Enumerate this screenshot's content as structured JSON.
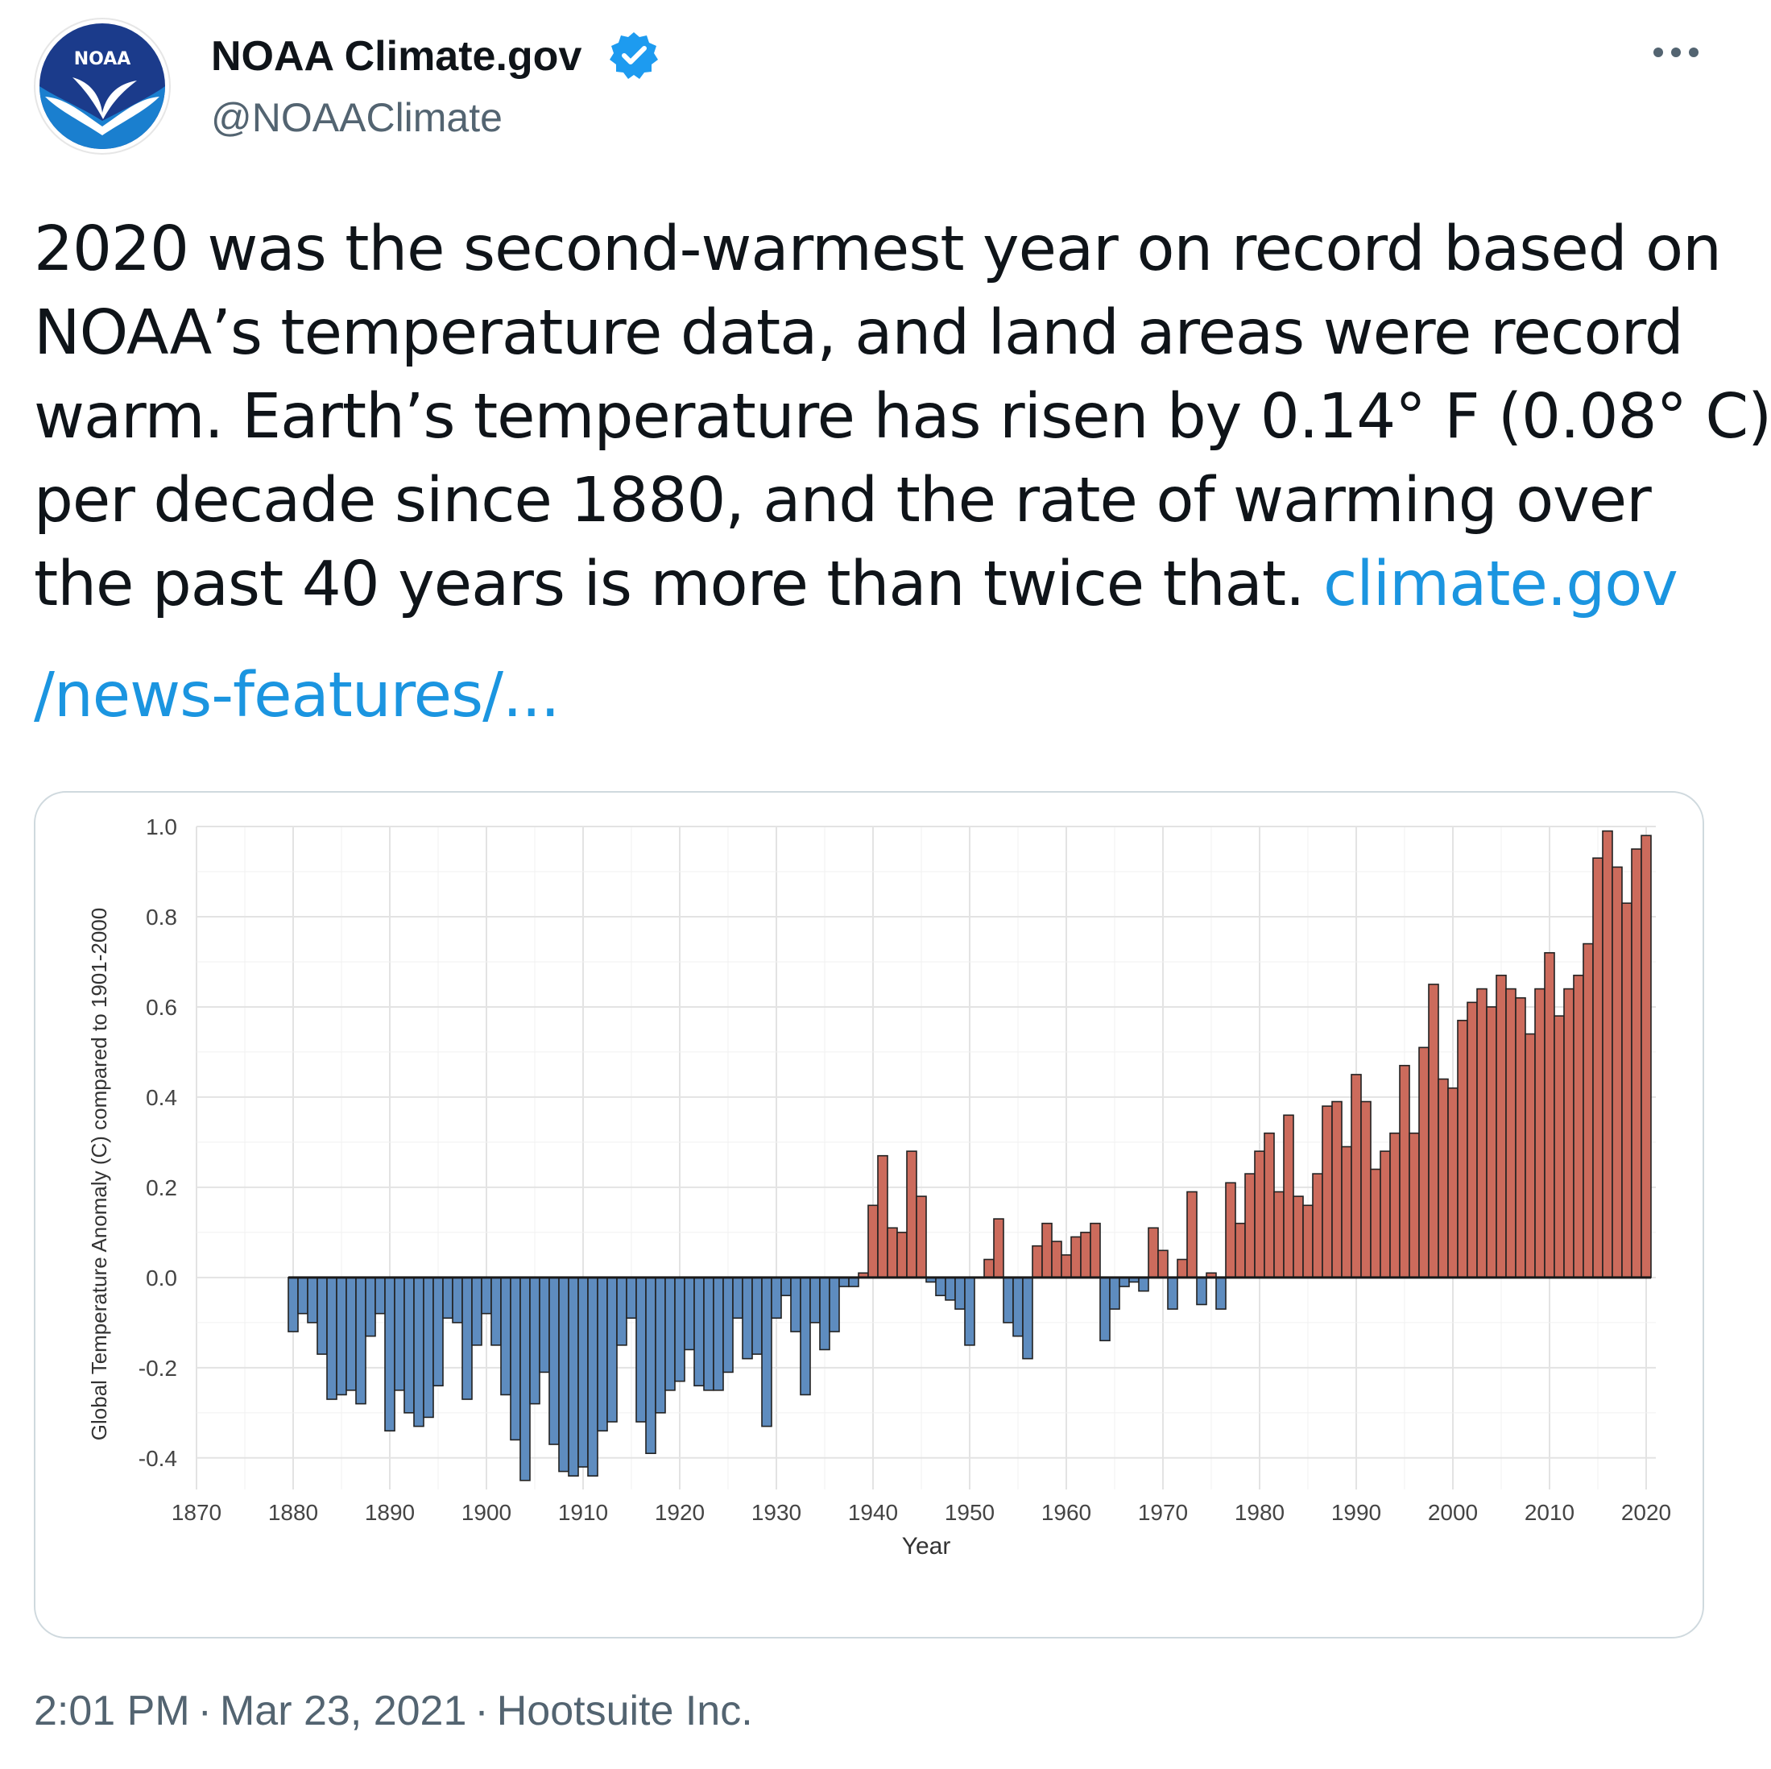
{
  "colors": {
    "positive_bar": "#cc6b5c",
    "negative_bar": "#5e8cbf",
    "link": "#1b95e0",
    "verified": "#1d9bf0",
    "noaa_navy": "#1b3b8b",
    "noaa_blue": "#1a7fcf"
  },
  "author": {
    "avatar_icon": "noaa-logo-icon",
    "avatar_text": "NOAA",
    "display_name": "NOAA Climate.gov",
    "handle": "@NOAAClimate",
    "verified_icon": "verified-badge-icon",
    "more_icon": "more-options-icon"
  },
  "tweet": {
    "lines": [
      "2020 was the second-warmest year on record based on",
      "NOAA’s temperature data, and land areas were record",
      "warm. Earth’s temperature has risen by 0.14° F (0.08° C)",
      "per decade since 1880, and the rate of warming over",
      "the past 40 years is more than twice that. "
    ],
    "link_part1": "climate.gov",
    "link_part2": "/news-features/..."
  },
  "chart_data": {
    "type": "bar",
    "xlabel": "Year",
    "ylabel": "Global Temperature Anomaly (C) compared to 1901-2000",
    "xlim": [
      1870,
      2021
    ],
    "ylim": [
      -0.47,
      1.0
    ],
    "grid": true,
    "xticks": [
      1870,
      1880,
      1890,
      1900,
      1910,
      1920,
      1930,
      1940,
      1950,
      1960,
      1970,
      1980,
      1990,
      2000,
      2010,
      2020
    ],
    "yticks": [
      "1.0",
      "0.8",
      "0.6",
      "0.4",
      "0.2",
      "0.0",
      "-0.2",
      "-0.4"
    ],
    "start_year": 1880,
    "values": [
      -0.12,
      -0.08,
      -0.1,
      -0.17,
      -0.27,
      -0.26,
      -0.25,
      -0.28,
      -0.13,
      -0.08,
      -0.34,
      -0.25,
      -0.3,
      -0.33,
      -0.31,
      -0.24,
      -0.09,
      -0.1,
      -0.27,
      -0.15,
      -0.08,
      -0.15,
      -0.26,
      -0.36,
      -0.45,
      -0.28,
      -0.21,
      -0.37,
      -0.43,
      -0.44,
      -0.42,
      -0.44,
      -0.34,
      -0.32,
      -0.15,
      -0.09,
      -0.32,
      -0.39,
      -0.3,
      -0.25,
      -0.23,
      -0.16,
      -0.24,
      -0.25,
      -0.25,
      -0.21,
      -0.09,
      -0.18,
      -0.17,
      -0.33,
      -0.09,
      -0.04,
      -0.12,
      -0.26,
      -0.1,
      -0.16,
      -0.12,
      -0.02,
      -0.02,
      0.01,
      0.16,
      0.27,
      0.11,
      0.1,
      0.28,
      0.18,
      -0.01,
      -0.04,
      -0.05,
      -0.07,
      -0.15,
      0.0,
      0.04,
      0.13,
      -0.1,
      -0.13,
      -0.18,
      0.07,
      0.12,
      0.08,
      0.05,
      0.09,
      0.1,
      0.12,
      -0.14,
      -0.07,
      -0.02,
      -0.01,
      -0.03,
      0.11,
      0.06,
      -0.07,
      0.04,
      0.19,
      -0.06,
      0.01,
      -0.07,
      0.21,
      0.12,
      0.23,
      0.28,
      0.32,
      0.19,
      0.36,
      0.18,
      0.16,
      0.23,
      0.38,
      0.39,
      0.29,
      0.45,
      0.39,
      0.24,
      0.28,
      0.32,
      0.47,
      0.32,
      0.51,
      0.65,
      0.44,
      0.42,
      0.57,
      0.61,
      0.64,
      0.6,
      0.67,
      0.64,
      0.62,
      0.54,
      0.64,
      0.72,
      0.58,
      0.64,
      0.67,
      0.74,
      0.93,
      0.99,
      0.91,
      0.83,
      0.95,
      0.98
    ]
  },
  "footer": {
    "time": "2:01 PM",
    "date": "Mar 23, 2021",
    "source": "Hootsuite Inc.",
    "separator": "·"
  }
}
